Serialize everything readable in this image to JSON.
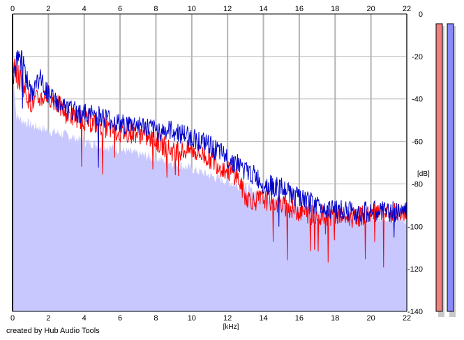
{
  "chart_data": {
    "type": "area",
    "xlabel": "[kHz]",
    "ylabel": "[dB]",
    "xlim": [
      0,
      22
    ],
    "ylim": [
      -140,
      0
    ],
    "x_ticks": [
      "0",
      "2",
      "4",
      "6",
      "8",
      "10",
      "12",
      "14",
      "16",
      "18",
      "20",
      "22"
    ],
    "y_ticks": [
      "0",
      "-20",
      "-40",
      "-60",
      "-80",
      "-100",
      "-120",
      "-140"
    ],
    "grid": true,
    "series": [
      {
        "color": "#ff0000",
        "x": [
          0,
          0.5,
          1,
          1.5,
          2,
          3,
          4,
          5,
          6,
          7,
          8,
          9,
          10,
          11,
          12,
          12.5,
          13,
          13.5,
          14,
          15,
          16,
          17,
          18,
          19,
          20,
          21,
          22
        ],
        "y": [
          -25,
          -32,
          -42,
          -40,
          -38,
          -47,
          -50,
          -53,
          -56,
          -56,
          -60,
          -65,
          -64,
          -68,
          -74,
          -76,
          -86,
          -88,
          -87,
          -90,
          -93,
          -95,
          -95,
          -96,
          -94,
          -94,
          -93
        ]
      },
      {
        "color": "#0000cc",
        "x": [
          0,
          0.5,
          1,
          1.5,
          2,
          3,
          4,
          5,
          6,
          7,
          8,
          9,
          10,
          11,
          12,
          12.5,
          13,
          13.5,
          14,
          15,
          16,
          17,
          18,
          19,
          20,
          21,
          22
        ],
        "y": [
          -28,
          -20,
          -38,
          -30,
          -38,
          -45,
          -47,
          -48,
          -52,
          -52,
          -55,
          -55,
          -58,
          -62,
          -68,
          -70,
          -74,
          -76,
          -80,
          -82,
          -87,
          -90,
          -92,
          -93,
          -93,
          -93,
          -93
        ]
      },
      {
        "color": "#c8c8ff",
        "x": [
          0,
          0.2,
          0.5,
          1,
          2,
          3,
          4,
          5,
          6,
          7,
          8,
          9,
          10,
          11,
          12,
          13,
          14,
          15,
          16,
          17,
          18,
          19,
          20,
          21,
          22
        ],
        "y": [
          -20,
          -48,
          -50,
          -52,
          -55,
          -57,
          -60,
          -62,
          -64,
          -66,
          -68,
          -70,
          -73,
          -76,
          -79,
          -82,
          -85,
          -88,
          -90,
          -92,
          -94,
          -95,
          -96,
          -96,
          -97
        ]
      }
    ],
    "level_meters": [
      {
        "color": "#f08080",
        "value": 1.0
      },
      {
        "color": "#8888ff",
        "value": 1.0
      }
    ]
  },
  "footer": {
    "credit": "created by Hub Audio Tools"
  }
}
